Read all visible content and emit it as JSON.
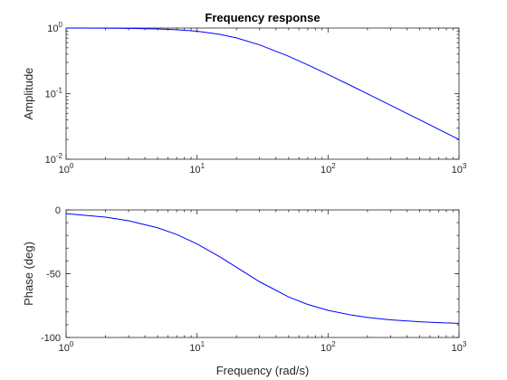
{
  "chart_data": [
    {
      "type": "line",
      "title": "Frequency response",
      "xlabel": "",
      "ylabel": "Amplitude",
      "xscale": "log",
      "yscale": "log",
      "xlim": [
        1,
        1000
      ],
      "ylim": [
        0.01,
        1
      ],
      "grid": false,
      "x_ticks": [
        {
          "base": "10",
          "exp": "0"
        },
        {
          "base": "10",
          "exp": "1"
        },
        {
          "base": "10",
          "exp": "2"
        },
        {
          "base": "10",
          "exp": "3"
        }
      ],
      "y_ticks": [
        {
          "value": 0.01,
          "base": "10",
          "exp": "-2"
        },
        {
          "value": 0.1,
          "base": "10",
          "exp": "-1"
        },
        {
          "value": 1,
          "base": "10",
          "exp": "0"
        }
      ],
      "series": [
        {
          "color": "#0000ff",
          "x": [
            1,
            2,
            3,
            5,
            7,
            10,
            15,
            20,
            30,
            50,
            70,
            100,
            150,
            200,
            300,
            500,
            700,
            1000
          ],
          "y": [
            0.999,
            0.995,
            0.989,
            0.97,
            0.943,
            0.894,
            0.8,
            0.707,
            0.555,
            0.371,
            0.275,
            0.196,
            0.132,
            0.0995,
            0.0665,
            0.04,
            0.0286,
            0.02
          ]
        }
      ]
    },
    {
      "type": "line",
      "title": "",
      "xlabel": "Frequency (rad/s)",
      "ylabel": "Phase (deg)",
      "xscale": "log",
      "yscale": "linear",
      "xlim": [
        1,
        1000
      ],
      "ylim": [
        -100,
        0
      ],
      "grid": false,
      "x_ticks": [
        {
          "base": "10",
          "exp": "0"
        },
        {
          "base": "10",
          "exp": "1"
        },
        {
          "base": "10",
          "exp": "2"
        },
        {
          "base": "10",
          "exp": "3"
        }
      ],
      "y_ticks": [
        {
          "value": 0,
          "label": "0"
        },
        {
          "value": -50,
          "label": "-50"
        },
        {
          "value": -100,
          "label": "-100"
        }
      ],
      "series": [
        {
          "color": "#0000ff",
          "x": [
            1,
            2,
            3,
            5,
            7,
            10,
            15,
            20,
            30,
            50,
            70,
            100,
            150,
            200,
            300,
            500,
            700,
            1000
          ],
          "y": [
            -2.9,
            -5.7,
            -8.5,
            -14.0,
            -19.3,
            -26.6,
            -36.9,
            -45.0,
            -56.3,
            -68.2,
            -74.1,
            -78.7,
            -82.4,
            -84.3,
            -86.2,
            -87.7,
            -88.4,
            -88.9
          ]
        }
      ]
    }
  ]
}
